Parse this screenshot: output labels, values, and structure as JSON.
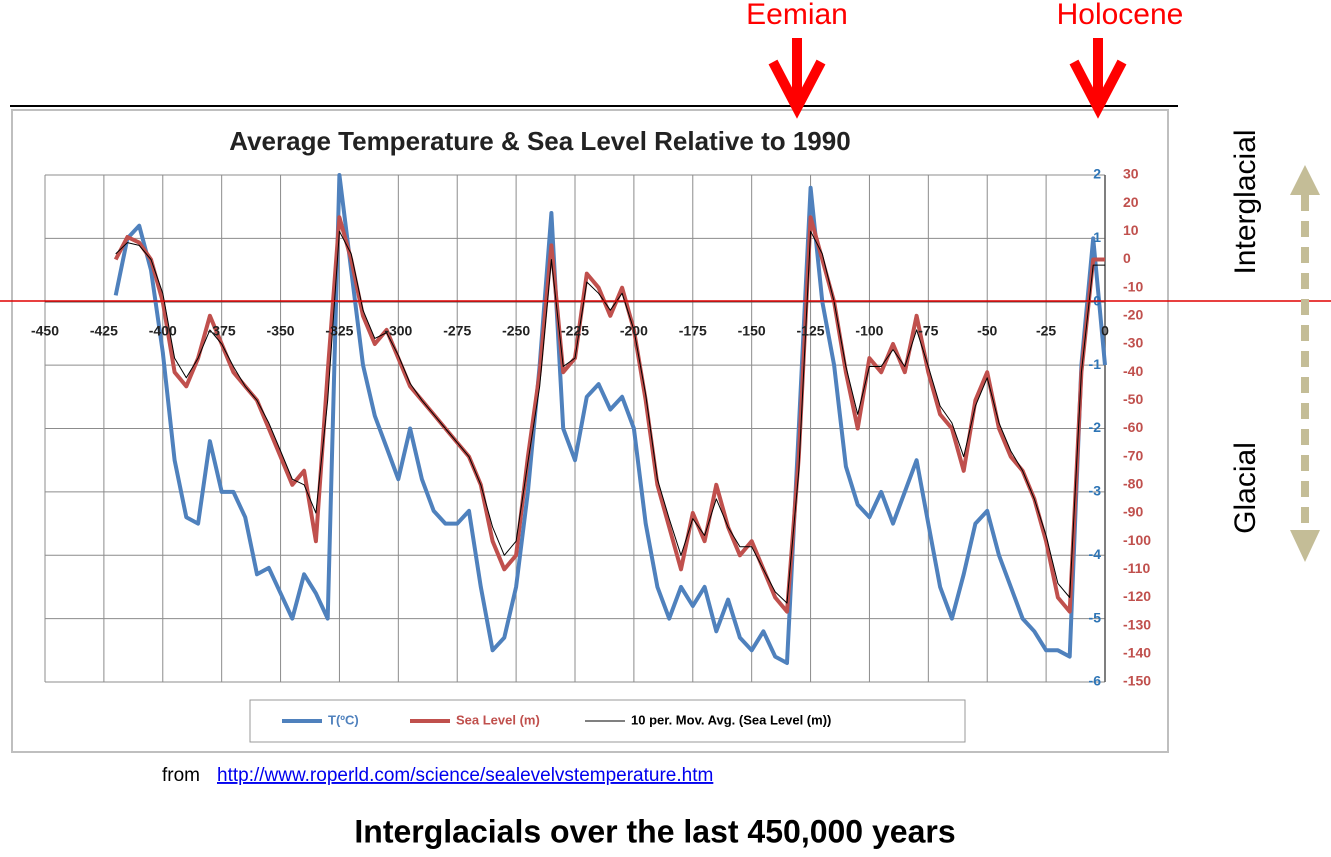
{
  "slide": {
    "eras": [
      "Eemian",
      "Holocene"
    ],
    "side_labels": [
      "Interglacial",
      "Glacial"
    ],
    "source_prefix": "from",
    "source_url": "http://www.roperld.com/science/sealevelvstemperature.htm",
    "caption": "Interglacials over the last 450,000 years"
  },
  "chart_data": {
    "type": "line",
    "title": "Average Temperature & Sea Level Relative to 1990",
    "x": [
      -420,
      -415,
      -410,
      -405,
      -400,
      -395,
      -390,
      -385,
      -380,
      -375,
      -370,
      -365,
      -360,
      -355,
      -350,
      -345,
      -340,
      -335,
      -330,
      -325,
      -320,
      -315,
      -310,
      -305,
      -300,
      -295,
      -290,
      -285,
      -280,
      -275,
      -270,
      -265,
      -260,
      -255,
      -250,
      -245,
      -240,
      -235,
      -230,
      -225,
      -220,
      -215,
      -210,
      -205,
      -200,
      -195,
      -190,
      -185,
      -180,
      -175,
      -170,
      -165,
      -160,
      -155,
      -150,
      -145,
      -140,
      -135,
      -130,
      -125,
      -120,
      -115,
      -110,
      -105,
      -100,
      -95,
      -90,
      -85,
      -80,
      -75,
      -70,
      -65,
      -60,
      -55,
      -50,
      -45,
      -40,
      -35,
      -30,
      -25,
      -20,
      -15,
      -10,
      -5,
      0
    ],
    "series": [
      {
        "name": "T(ºC)",
        "color": "#4f81bd",
        "width": 4,
        "values": [
          0.1,
          1,
          1.2,
          0.5,
          -0.8,
          -2.5,
          -3.4,
          -3.5,
          -2.2,
          -3,
          -3,
          -3.4,
          -4.3,
          -4.2,
          -4.6,
          -5,
          -4.3,
          -4.6,
          -5,
          2,
          0.5,
          -1,
          -1.8,
          -2.3,
          -2.8,
          -2,
          -2.8,
          -3.3,
          -3.5,
          -3.5,
          -3.3,
          -4.5,
          -5.5,
          -5.3,
          -4.5,
          -3,
          -1,
          1.4,
          -2,
          -2.5,
          -1.5,
          -1.3,
          -1.7,
          -1.5,
          -2,
          -3.5,
          -4.5,
          -5,
          -4.5,
          -4.8,
          -4.5,
          -5.2,
          -4.7,
          -5.3,
          -5.5,
          -5.2,
          -5.6,
          -5.7,
          -2,
          1.8,
          0,
          -1,
          -2.6,
          -3.2,
          -3.4,
          -3,
          -3.5,
          -3,
          -2.5,
          -3.5,
          -4.5,
          -5,
          -4.3,
          -3.5,
          -3.3,
          -4,
          -4.5,
          -5,
          -5.2,
          -5.5,
          -5.5,
          -5.6,
          -1,
          1,
          -1
        ]
      },
      {
        "name": "Sea Level (m)",
        "color": "#c0504d",
        "width": 4,
        "axis": "y2",
        "values": [
          0,
          8,
          6,
          0,
          -15,
          -40,
          -45,
          -35,
          -20,
          -30,
          -40,
          -45,
          -50,
          -60,
          -70,
          -80,
          -75,
          -100,
          -40,
          15,
          0,
          -20,
          -30,
          -25,
          -35,
          -45,
          -50,
          -55,
          -60,
          -65,
          -70,
          -80,
          -100,
          -110,
          -105,
          -70,
          -40,
          5,
          -40,
          -35,
          -5,
          -10,
          -20,
          -10,
          -25,
          -50,
          -80,
          -95,
          -110,
          -90,
          -100,
          -80,
          -95,
          -105,
          -100,
          -110,
          -120,
          -125,
          -70,
          15,
          0,
          -15,
          -40,
          -60,
          -35,
          -40,
          -30,
          -40,
          -20,
          -40,
          -55,
          -60,
          -75,
          -50,
          -40,
          -60,
          -70,
          -75,
          -85,
          -100,
          -120,
          -125,
          -40,
          0,
          0
        ]
      },
      {
        "name": "10 per. Mov. Avg. (Sea Level (m))",
        "color": "#000000",
        "width": 1,
        "axis": "y2",
        "values": [
          2,
          6,
          5,
          0,
          -12,
          -35,
          -42,
          -35,
          -25,
          -30,
          -38,
          -45,
          -50,
          -58,
          -68,
          -78,
          -80,
          -90,
          -50,
          10,
          2,
          -18,
          -28,
          -26,
          -34,
          -44,
          -50,
          -55,
          -60,
          -65,
          -70,
          -80,
          -95,
          -105,
          -100,
          -72,
          -45,
          0,
          -38,
          -35,
          -8,
          -12,
          -18,
          -12,
          -25,
          -48,
          -78,
          -92,
          -105,
          -92,
          -98,
          -85,
          -95,
          -102,
          -102,
          -110,
          -118,
          -122,
          -75,
          10,
          2,
          -15,
          -38,
          -55,
          -38,
          -38,
          -32,
          -38,
          -25,
          -38,
          -52,
          -58,
          -70,
          -52,
          -42,
          -58,
          -68,
          -75,
          -85,
          -98,
          -115,
          -120,
          -40,
          -2,
          -2
        ]
      }
    ],
    "xlim": [
      -450,
      0
    ],
    "xticks": [
      -450,
      -425,
      -400,
      -375,
      -350,
      -325,
      -300,
      -275,
      -250,
      -225,
      -200,
      -175,
      -150,
      -125,
      -100,
      -75,
      -50,
      -25,
      0
    ],
    "ylim": [
      -6,
      2
    ],
    "yticks": [
      2,
      1,
      0,
      -1,
      -2,
      -3,
      -4,
      -5,
      -6
    ],
    "y2lim": [
      -150,
      30
    ],
    "y2ticks": [
      30,
      20,
      10,
      0,
      -10,
      -20,
      -30,
      -40,
      -50,
      -60,
      -70,
      -80,
      -90,
      -100,
      -110,
      -120,
      -130,
      -140,
      -150
    ],
    "grid": true
  }
}
